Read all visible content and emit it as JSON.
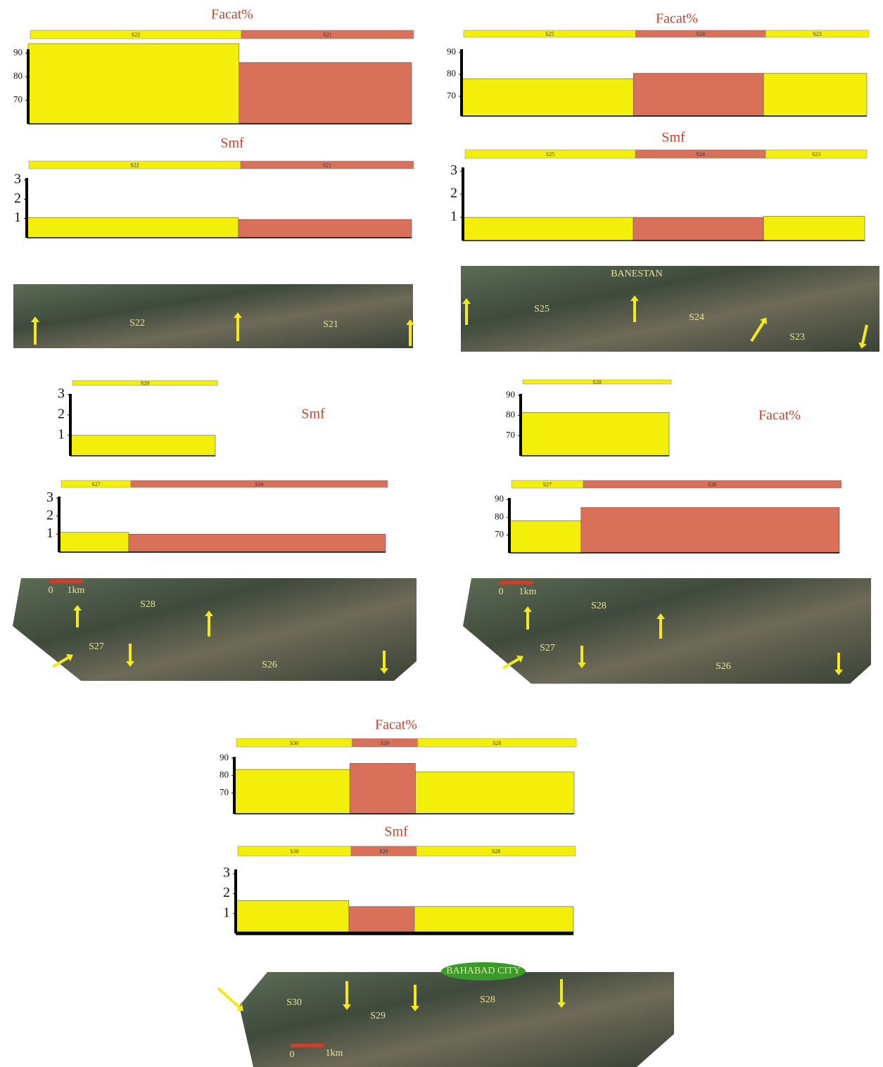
{
  "chart_data": [
    {
      "type": "bar",
      "title": "Facat%",
      "categories": [
        "S22",
        "S21"
      ],
      "values": [
        94,
        86
      ],
      "colors": [
        "#f3ef0a",
        "#d9705a"
      ],
      "ylim": [
        60,
        94
      ],
      "yticks": [
        70,
        80,
        90
      ]
    },
    {
      "type": "bar",
      "title": "Smf",
      "categories": [
        "S22",
        "S21"
      ],
      "values": [
        1.05,
        0.95
      ],
      "colors": [
        "#f3ef0a",
        "#d9705a"
      ],
      "ylim": [
        0,
        3.4
      ],
      "yticks": [
        1,
        2,
        3
      ]
    },
    {
      "type": "bar",
      "title": "Facat%",
      "categories": [
        "S25",
        "S24",
        "S23"
      ],
      "values": [
        78,
        80.5,
        80.5
      ],
      "colors": [
        "#f3ef0a",
        "#d9705a",
        "#f3ef0a"
      ],
      "ylim": [
        61,
        94
      ],
      "yticks": [
        70,
        80,
        90
      ]
    },
    {
      "type": "bar",
      "title": "Smf",
      "categories": [
        "S25",
        "S24",
        "S23"
      ],
      "values": [
        1,
        1,
        1.05
      ],
      "colors": [
        "#f3ef0a",
        "#d9705a",
        "#f3ef0a"
      ],
      "ylim": [
        0,
        3.4
      ],
      "yticks": [
        1,
        2,
        3
      ]
    },
    {
      "type": "bar",
      "title": "Smf",
      "categories": [
        "S28"
      ],
      "values": [
        1
      ],
      "colors": [
        "#f3ef0a"
      ],
      "ylim": [
        0,
        3.3
      ],
      "yticks": [
        1,
        2,
        3
      ]
    },
    {
      "type": "bar",
      "categories": [
        "S27",
        "S26"
      ],
      "values": [
        1.1,
        1
      ],
      "colors": [
        "#f3ef0a",
        "#d9705a"
      ],
      "ylim": [
        0,
        3.4
      ],
      "yticks": [
        1,
        2,
        3
      ]
    },
    {
      "type": "bar",
      "title": "Facat%",
      "categories": [
        "S28"
      ],
      "values": [
        81.5
      ],
      "colors": [
        "#f3ef0a"
      ],
      "ylim": [
        60,
        93.5
      ],
      "yticks": [
        70,
        80,
        90
      ]
    },
    {
      "type": "bar",
      "categories": [
        "S27",
        "S26"
      ],
      "values": [
        78,
        85.5
      ],
      "colors": [
        "#f3ef0a",
        "#d9705a"
      ],
      "ylim": [
        60,
        94
      ],
      "yticks": [
        70,
        80,
        90
      ]
    },
    {
      "type": "bar",
      "title": "Facat%",
      "categories": [
        "S30",
        "S29",
        "S28"
      ],
      "values": [
        83.5,
        87,
        82
      ],
      "colors": [
        "#f3ef0a",
        "#d9705a",
        "#f3ef0a"
      ],
      "ylim": [
        58,
        94
      ],
      "yticks": [
        70,
        80,
        90
      ]
    },
    {
      "type": "bar",
      "title": "Smf",
      "categories": [
        "S30",
        "S29",
        "S28"
      ],
      "values": [
        1.65,
        1.35,
        1.35
      ],
      "colors": [
        "#f3ef0a",
        "#d9705a",
        "#f3ef0a"
      ],
      "ylim": [
        0,
        3.5
      ],
      "yticks": [
        1,
        2,
        3
      ]
    }
  ],
  "maps": [
    {
      "labels": [
        "S22",
        "S21"
      ]
    },
    {
      "labels": [
        "BANESTAN",
        "S25",
        "S24",
        "S23"
      ]
    },
    {
      "labels": [
        "S28",
        "S27",
        "S26",
        "0",
        "1km"
      ]
    },
    {
      "labels": [
        "S28",
        "S27",
        "S26",
        "0",
        "1km"
      ]
    },
    {
      "labels": [
        "BAHABAD CITY",
        "S30",
        "S29",
        "S28",
        "0",
        "1km"
      ]
    }
  ]
}
